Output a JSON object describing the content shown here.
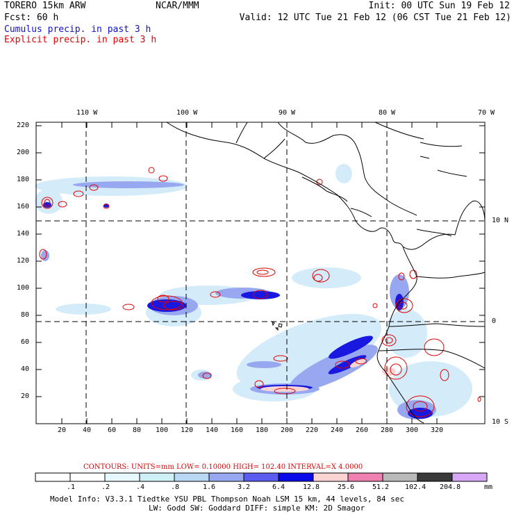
{
  "header": {
    "model": "TORERO  15km ARW",
    "org": "NCAR/MMM",
    "init": "Init: 00 UTC Sun 19 Feb 12",
    "fcst": "Fcst:   60 h",
    "valid": "Valid: 12 UTC Tue 21 Feb 12 (06 CST Tue 21 Feb 12)",
    "legend_cumulus": "Cumulus precip. in past 3 h",
    "legend_explicit": "Explicit precip. in past 3 h"
  },
  "map": {
    "top_lon_labels": [
      "110 W",
      "100 W",
      "90 W",
      "80 W",
      "70 W"
    ],
    "right_lat_labels": [
      "10 N",
      "0",
      "10 S"
    ],
    "y_ticks": [
      "220",
      "200",
      "180",
      "160",
      "140",
      "120",
      "100",
      "80",
      "60",
      "40",
      "20"
    ],
    "x_ticks": [
      "20",
      "40",
      "60",
      "80",
      "100",
      "120",
      "140",
      "160",
      "180",
      "200",
      "220",
      "240",
      "260",
      "280",
      "300",
      "320"
    ]
  },
  "colorbar": {
    "contours_line": "CONTOURS:  UNITS=mm  LOW= 0.10000      HIGH=  102.40      INTERVAL=X  4.0000",
    "labels": [
      ".1",
      ".2",
      ".4",
      ".8",
      "1.6",
      "3.2",
      "6.4",
      "12.8",
      "25.6",
      "51.2",
      "102.4",
      "204.8"
    ],
    "unit": "mm",
    "colors": [
      "#ffffff",
      "#ffffff",
      "#e8f8ff",
      "#d0f0f8",
      "#b8d8f4",
      "#98a8f0",
      "#5c5cf0",
      "#0808e8",
      "#fcd4d4",
      "#f080b0",
      "#bababa",
      "#3a3a3a",
      "#d8a8f8"
    ]
  },
  "footer": {
    "line1": "Model Info: V3.3.1   Tiedtke YSU PBL  Thompson     Noah LSM  15 km,   44 levels,   84 sec",
    "line2": "LW: Godd SW: Goddard DIFF: simple KM: 2D Smagor"
  }
}
